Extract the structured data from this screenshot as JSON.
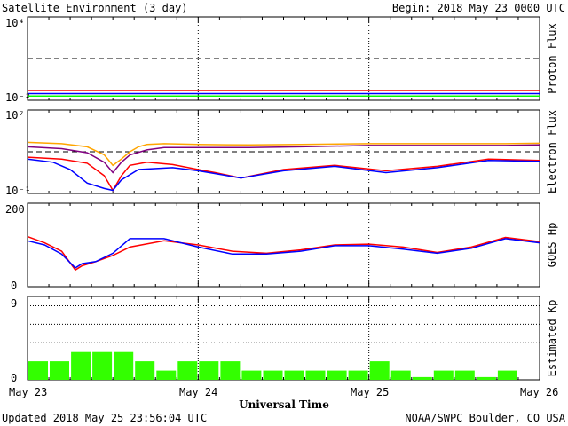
{
  "header": {
    "title": "Satellite Environment (3 day)",
    "begin": "Begin:  2018 May 23 0000 UTC"
  },
  "footer": {
    "updated": "Updated 2018 May 25 23:56:04 UTC",
    "credit": "NOAA/SWPC Boulder, CO USA"
  },
  "colors": {
    "red": "#ff0000",
    "blue": "#0000ff",
    "green": "#00ff00",
    "orange": "#ffa500",
    "kp_bar": "#33ff00"
  },
  "chart_data": [
    {
      "type": "line",
      "ylabel": "Proton Flux",
      "scale": "log",
      "ylim": [
        0.01,
        10000
      ],
      "y_tick_labels": [
        "10⁴",
        "10⁻²"
      ],
      "threshold": 10,
      "x_range_days": [
        0,
        3
      ],
      "series": [
        {
          "color": "red",
          "x": [
            0,
            0.5,
            1,
            1.5,
            2,
            2.5,
            3
          ],
          "values": [
            0.05,
            0.05,
            0.05,
            0.05,
            0.05,
            0.05,
            0.05
          ]
        },
        {
          "color": "blue",
          "x": [
            0,
            0.5,
            1,
            1.5,
            2,
            2.5,
            3
          ],
          "values": [
            0.03,
            0.03,
            0.03,
            0.03,
            0.03,
            0.03,
            0.03
          ]
        },
        {
          "color": "green",
          "x": [
            0,
            0.5,
            1,
            1.5,
            2,
            2.5,
            3
          ],
          "values": [
            0.02,
            0.02,
            0.02,
            0.02,
            0.02,
            0.02,
            0.02
          ]
        }
      ]
    },
    {
      "type": "line",
      "ylabel": "Electron Flux",
      "scale": "log",
      "ylim": [
        0.1,
        10000000
      ],
      "y_tick_labels": [
        "10⁷",
        "10⁻¹"
      ],
      "threshold": 1000,
      "x_range_days": [
        0,
        3
      ],
      "series": [
        {
          "color": "orange",
          "x": [
            0,
            0.2,
            0.35,
            0.45,
            0.5,
            0.55,
            0.6,
            0.65,
            0.7,
            0.8,
            1,
            1.3,
            1.6,
            2,
            2.4,
            2.8,
            3
          ],
          "values": [
            8000,
            6000,
            3000,
            500,
            50,
            200,
            1000,
            3000,
            5000,
            6000,
            5000,
            4500,
            5000,
            6000,
            6000,
            6000,
            6500
          ]
        },
        {
          "color": "purple",
          "x": [
            0,
            0.2,
            0.35,
            0.45,
            0.5,
            0.55,
            0.6,
            0.7,
            0.8,
            1,
            1.3,
            1.6,
            2,
            2.4,
            2.8,
            3
          ],
          "values": [
            3000,
            2000,
            800,
            100,
            10,
            100,
            500,
            1500,
            2500,
            2500,
            2500,
            3000,
            4000,
            4000,
            4000,
            4500
          ]
        },
        {
          "color": "red",
          "x": [
            0,
            0.2,
            0.35,
            0.45,
            0.5,
            0.55,
            0.6,
            0.7,
            0.85,
            1,
            1.1,
            1.25,
            1.5,
            1.8,
            2.1,
            2.4,
            2.7,
            3
          ],
          "values": [
            300,
            200,
            80,
            5,
            0.2,
            5,
            50,
            100,
            60,
            20,
            10,
            3,
            20,
            50,
            15,
            40,
            200,
            150
          ]
        },
        {
          "color": "blue",
          "x": [
            0,
            0.15,
            0.25,
            0.35,
            0.45,
            0.5,
            0.55,
            0.65,
            0.85,
            1,
            1.1,
            1.25,
            1.5,
            1.8,
            2.1,
            2.4,
            2.7,
            3
          ],
          "values": [
            200,
            100,
            20,
            1,
            0.3,
            0.2,
            2,
            20,
            30,
            15,
            8,
            3,
            15,
            40,
            10,
            30,
            150,
            120
          ]
        }
      ]
    },
    {
      "type": "line",
      "ylabel": "GOES Hp",
      "ylim": [
        0,
        200
      ],
      "y_tick_labels": [
        "200",
        "0"
      ],
      "x_range_days": [
        0,
        3
      ],
      "series": [
        {
          "color": "red",
          "x": [
            0,
            0.1,
            0.2,
            0.28,
            0.32,
            0.4,
            0.5,
            0.6,
            0.8,
            1.0,
            1.2,
            1.4,
            1.6,
            1.8,
            2.0,
            2.2,
            2.4,
            2.6,
            2.8,
            3.0
          ],
          "values": [
            120,
            105,
            85,
            40,
            50,
            60,
            75,
            95,
            110,
            100,
            85,
            80,
            88,
            100,
            102,
            95,
            82,
            95,
            118,
            108
          ]
        },
        {
          "color": "blue",
          "x": [
            0,
            0.1,
            0.2,
            0.28,
            0.32,
            0.4,
            0.5,
            0.6,
            0.8,
            1.0,
            1.2,
            1.4,
            1.6,
            1.8,
            2.0,
            2.2,
            2.4,
            2.6,
            2.8,
            3.0
          ],
          "values": [
            110,
            100,
            78,
            45,
            55,
            60,
            80,
            115,
            115,
            95,
            78,
            78,
            85,
            98,
            98,
            90,
            80,
            92,
            115,
            105
          ]
        }
      ]
    },
    {
      "type": "bar",
      "ylabel": "Estimated Kp",
      "ylim": [
        0,
        9
      ],
      "y_tick_labels": [
        "9",
        "0"
      ],
      "categories": [
        "0",
        "3",
        "6",
        "9",
        "12",
        "15",
        "18",
        "21",
        "0",
        "3",
        "6",
        "9",
        "12",
        "15",
        "18",
        "21",
        "0",
        "3",
        "6",
        "9",
        "12",
        "15",
        "18",
        "21"
      ],
      "values": [
        2.0,
        2.0,
        3.0,
        3.0,
        3.0,
        2.0,
        1.0,
        2.0,
        2.0,
        2.0,
        1.0,
        1.0,
        1.0,
        1.0,
        1.0,
        1.0,
        2.0,
        1.0,
        0.3,
        1.0,
        1.0,
        0.3,
        1.0,
        0
      ],
      "gridlines": [
        4,
        6,
        8
      ]
    }
  ],
  "x_axis": {
    "labels": [
      "May 23",
      "May 24",
      "May 25",
      "May 26"
    ],
    "title": "Universal Time"
  }
}
